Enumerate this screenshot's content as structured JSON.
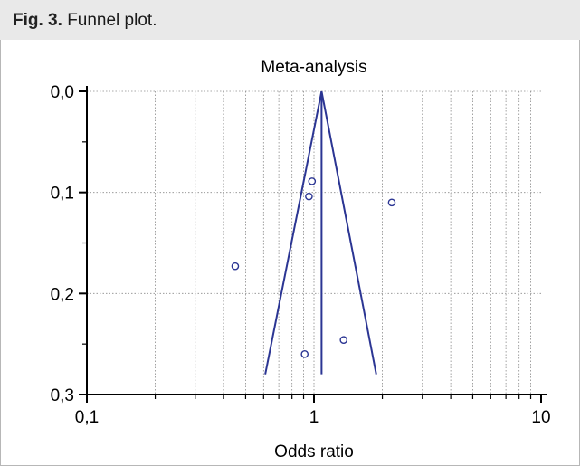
{
  "caption": {
    "label": "Fig. 3.",
    "text": "Funnel plot."
  },
  "chart_data": {
    "type": "scatter",
    "title": "Meta-analysis",
    "xlabel": "Odds ratio",
    "ylabel": "",
    "x_scale": "log",
    "xlim": [
      0.1,
      10
    ],
    "ylim": [
      0.0,
      0.3
    ],
    "y_inverted": true,
    "x_ticks": [
      0.1,
      1,
      10
    ],
    "x_tick_labels": [
      "0,1",
      "1",
      "10"
    ],
    "y_ticks": [
      0.0,
      0.1,
      0.2,
      0.3
    ],
    "y_tick_labels": [
      "0,0",
      "0,1",
      "0,2",
      "0,3"
    ],
    "grid": true,
    "series": [
      {
        "points": [
          {
            "x": 0.98,
            "y": 0.089
          },
          {
            "x": 0.95,
            "y": 0.104
          },
          {
            "x": 2.2,
            "y": 0.11
          },
          {
            "x": 0.45,
            "y": 0.173
          },
          {
            "x": 1.35,
            "y": 0.246
          },
          {
            "x": 0.91,
            "y": 0.26
          }
        ]
      }
    ],
    "pooled_estimate": 1.08,
    "funnel_lines": [
      {
        "x": [
          1.08,
          0.61
        ],
        "y": [
          0.0,
          0.28
        ]
      },
      {
        "x": [
          1.08,
          1.88
        ],
        "y": [
          0.0,
          0.28
        ]
      },
      {
        "x": [
          1.08,
          1.08
        ],
        "y": [
          0.0,
          0.28
        ]
      }
    ],
    "colors": {
      "series": "#2b3593",
      "axis": "#000000",
      "grid": "#8c8c8c"
    }
  }
}
